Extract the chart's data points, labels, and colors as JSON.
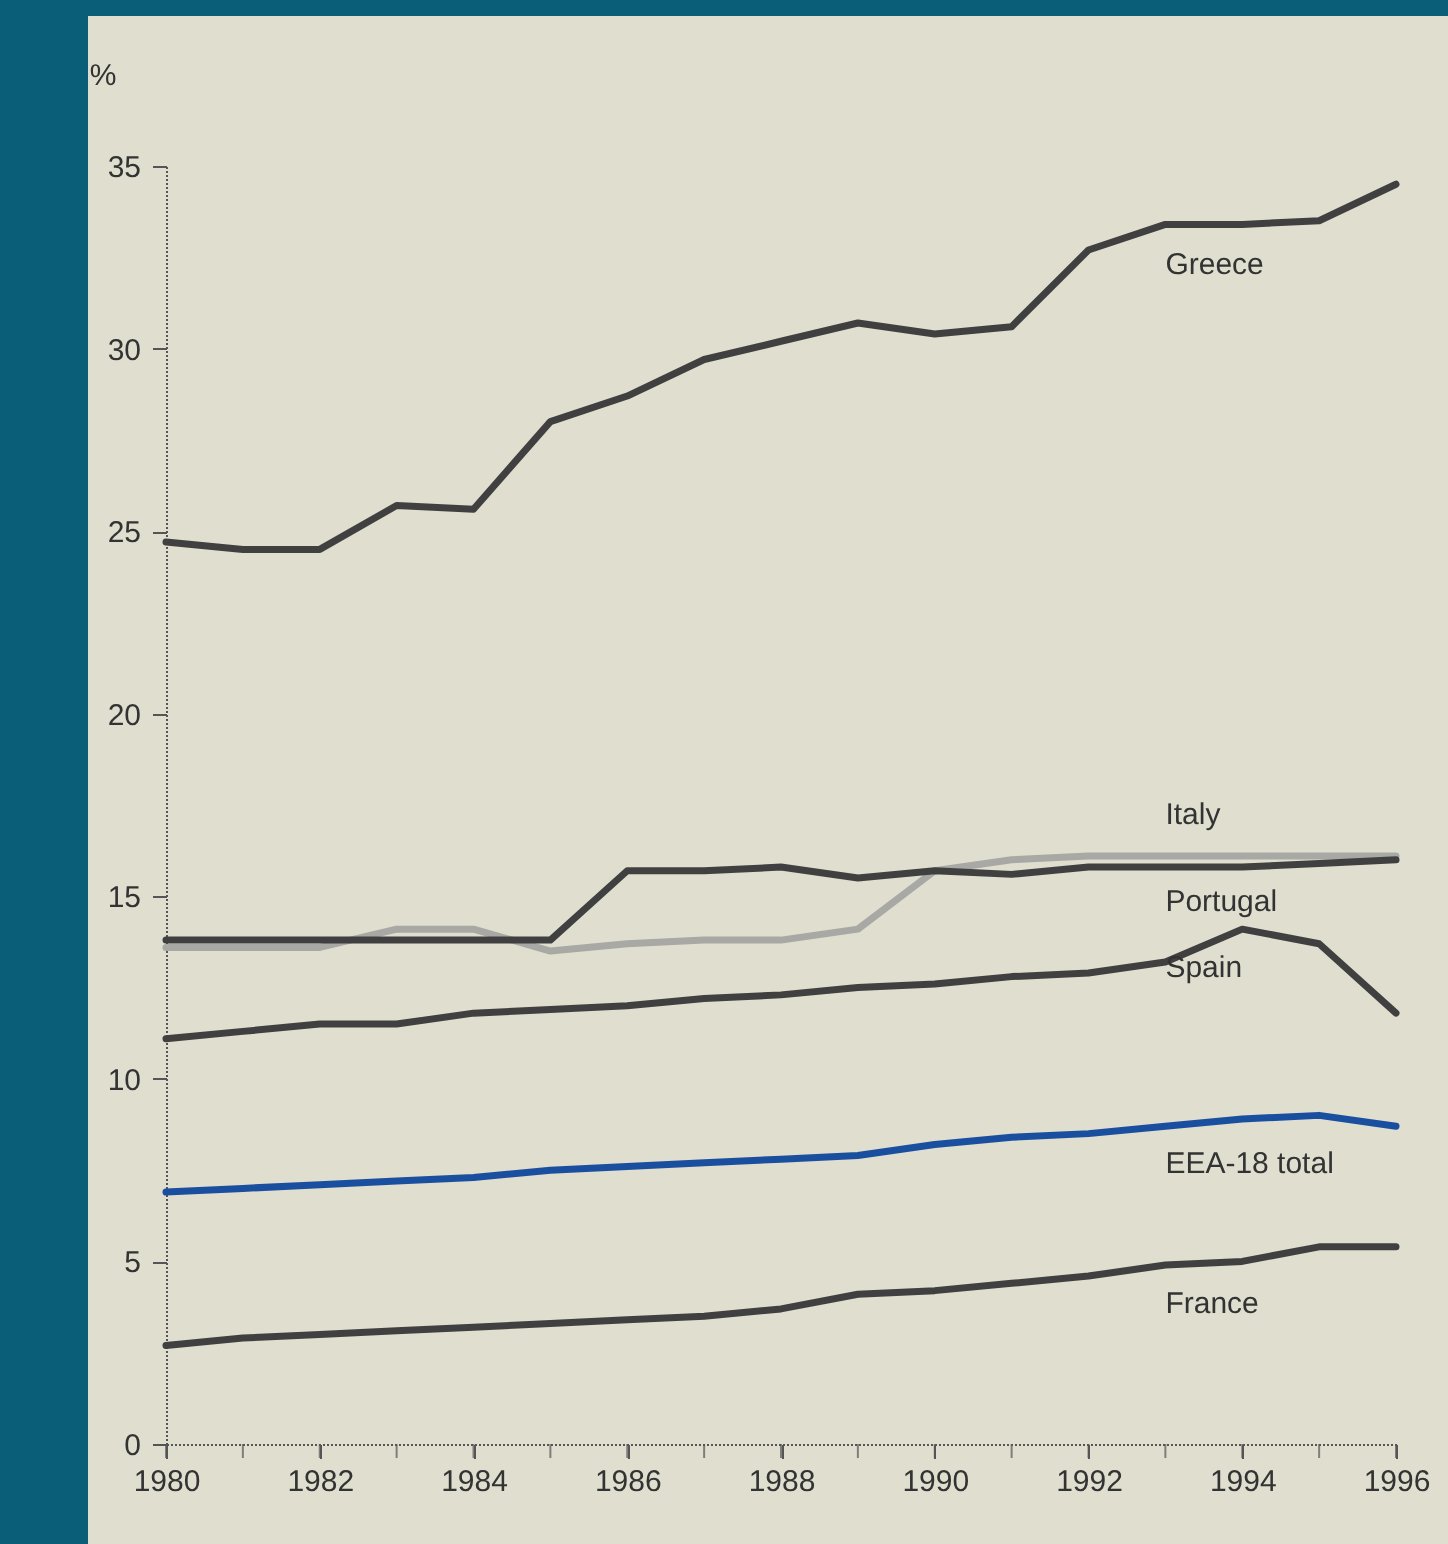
{
  "chart_data": {
    "type": "line",
    "ylabel": "%",
    "x": [
      1980,
      1981,
      1982,
      1983,
      1984,
      1985,
      1986,
      1987,
      1988,
      1989,
      1990,
      1991,
      1992,
      1993,
      1994,
      1995,
      1996
    ],
    "series": [
      {
        "name": "Greece",
        "color": "#404040",
        "values": [
          24.7,
          24.5,
          24.5,
          25.7,
          25.6,
          28.0,
          28.7,
          29.7,
          30.2,
          30.7,
          30.4,
          30.6,
          32.7,
          33.4,
          33.4,
          33.5,
          34.5
        ]
      },
      {
        "name": "Italy",
        "color": "#a8a8a4",
        "values": [
          13.6,
          13.6,
          13.6,
          14.1,
          14.1,
          13.5,
          13.7,
          13.8,
          13.8,
          14.1,
          15.7,
          16.0,
          16.1,
          16.1,
          16.1,
          16.1,
          16.1
        ]
      },
      {
        "name": "Portugal",
        "color": "#404040",
        "values": [
          13.8,
          13.8,
          13.8,
          13.8,
          13.8,
          13.8,
          15.7,
          15.7,
          15.8,
          15.5,
          15.7,
          15.6,
          15.8,
          15.8,
          15.8,
          15.9,
          16.0
        ]
      },
      {
        "name": "Spain",
        "color": "#404040",
        "values": [
          11.1,
          11.3,
          11.5,
          11.5,
          11.8,
          11.9,
          12.0,
          12.2,
          12.3,
          12.5,
          12.6,
          12.8,
          12.9,
          13.2,
          14.1,
          13.7,
          11.8
        ]
      },
      {
        "name": "EEA-18 total",
        "color": "#1a4fa0",
        "values": [
          6.9,
          7.0,
          7.1,
          7.2,
          7.3,
          7.5,
          7.6,
          7.7,
          7.8,
          7.9,
          8.2,
          8.4,
          8.5,
          8.7,
          8.9,
          9.0,
          8.7
        ]
      },
      {
        "name": "France",
        "color": "#404040",
        "values": [
          2.7,
          2.9,
          3.0,
          3.1,
          3.2,
          3.3,
          3.4,
          3.5,
          3.7,
          4.1,
          4.2,
          4.4,
          4.6,
          4.9,
          5.0,
          5.4,
          5.4
        ]
      }
    ],
    "xlim": [
      1980,
      1996
    ],
    "xticks": [
      1980,
      {
        "value": 1981,
        "label": null
      },
      1982,
      {
        "value": 1983,
        "label": null
      },
      1984,
      {
        "value": 1985,
        "label": null
      },
      1986,
      {
        "value": 1987,
        "label": null
      },
      1988,
      {
        "value": 1989,
        "label": null
      },
      1990,
      {
        "value": 1991,
        "label": null
      },
      1992,
      {
        "value": 1993,
        "label": null
      },
      1994,
      {
        "value": 1995,
        "label": null
      },
      1996
    ],
    "ylim": [
      0,
      35
    ],
    "yticks": [
      0,
      5,
      10,
      15,
      20,
      25,
      30,
      35
    ],
    "grid": false,
    "legend": false,
    "marker": "none",
    "line_style": "solid"
  }
}
